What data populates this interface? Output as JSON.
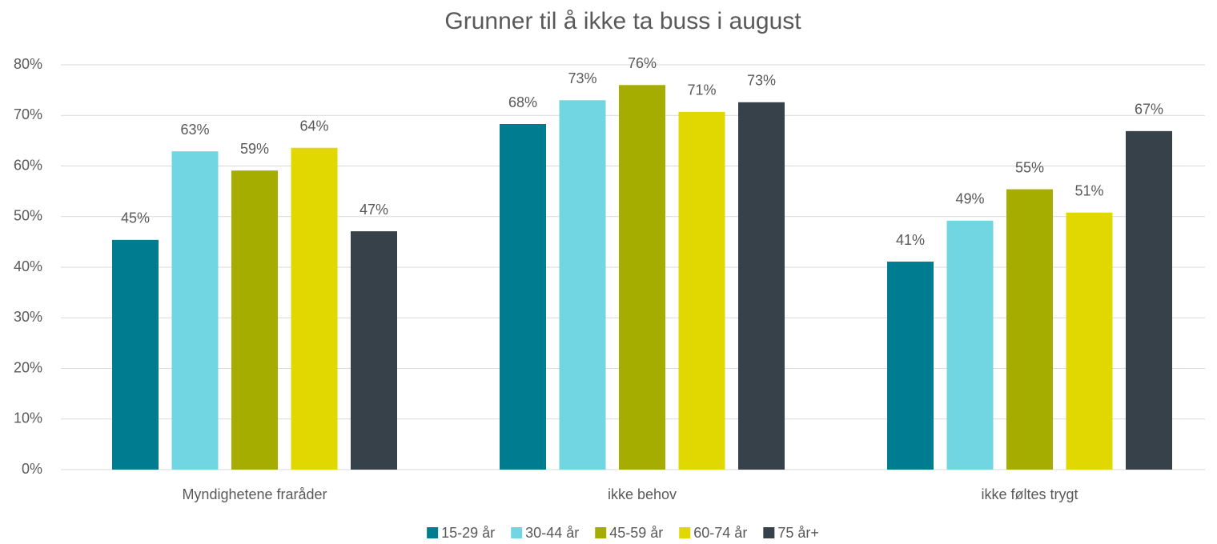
{
  "chart_data": {
    "type": "bar",
    "title": "Grunner til å ikke ta buss i august",
    "categories": [
      "Myndighetene fraråder",
      "ikke behov",
      "ikke føltes trygt"
    ],
    "series": [
      {
        "name": "15-29 år",
        "color": "#007c91",
        "values": [
          45.4,
          68.3,
          41.1
        ],
        "value_labels": [
          "45%",
          "68%",
          "41%"
        ]
      },
      {
        "name": "30-44 år",
        "color": "#72d5e2",
        "values": [
          62.9,
          73.0,
          49.2
        ],
        "value_labels": [
          "63%",
          "73%",
          "49%"
        ]
      },
      {
        "name": "45-59 år",
        "color": "#a5ad00",
        "values": [
          59.1,
          76.0,
          55.4
        ],
        "value_labels": [
          "59%",
          "76%",
          "55%"
        ]
      },
      {
        "name": "60-74 år",
        "color": "#e0d800",
        "values": [
          63.6,
          70.7,
          50.8
        ],
        "value_labels": [
          "64%",
          "71%",
          "51%"
        ]
      },
      {
        "name": "75 år+",
        "color": "#36414a",
        "values": [
          47.1,
          72.6,
          66.9
        ],
        "value_labels": [
          "47%",
          "73%",
          "67%"
        ]
      }
    ],
    "ylim": [
      0,
      80
    ],
    "yticks": [
      {
        "value": 0,
        "label": "0%"
      },
      {
        "value": 10,
        "label": "10%"
      },
      {
        "value": 20,
        "label": "20%"
      },
      {
        "value": 30,
        "label": "30%"
      },
      {
        "value": 40,
        "label": "40%"
      },
      {
        "value": 50,
        "label": "50%"
      },
      {
        "value": 60,
        "label": "60%"
      },
      {
        "value": 70,
        "label": "70%"
      },
      {
        "value": 80,
        "label": "80%"
      }
    ],
    "grid": true,
    "legend": "bottom"
  }
}
